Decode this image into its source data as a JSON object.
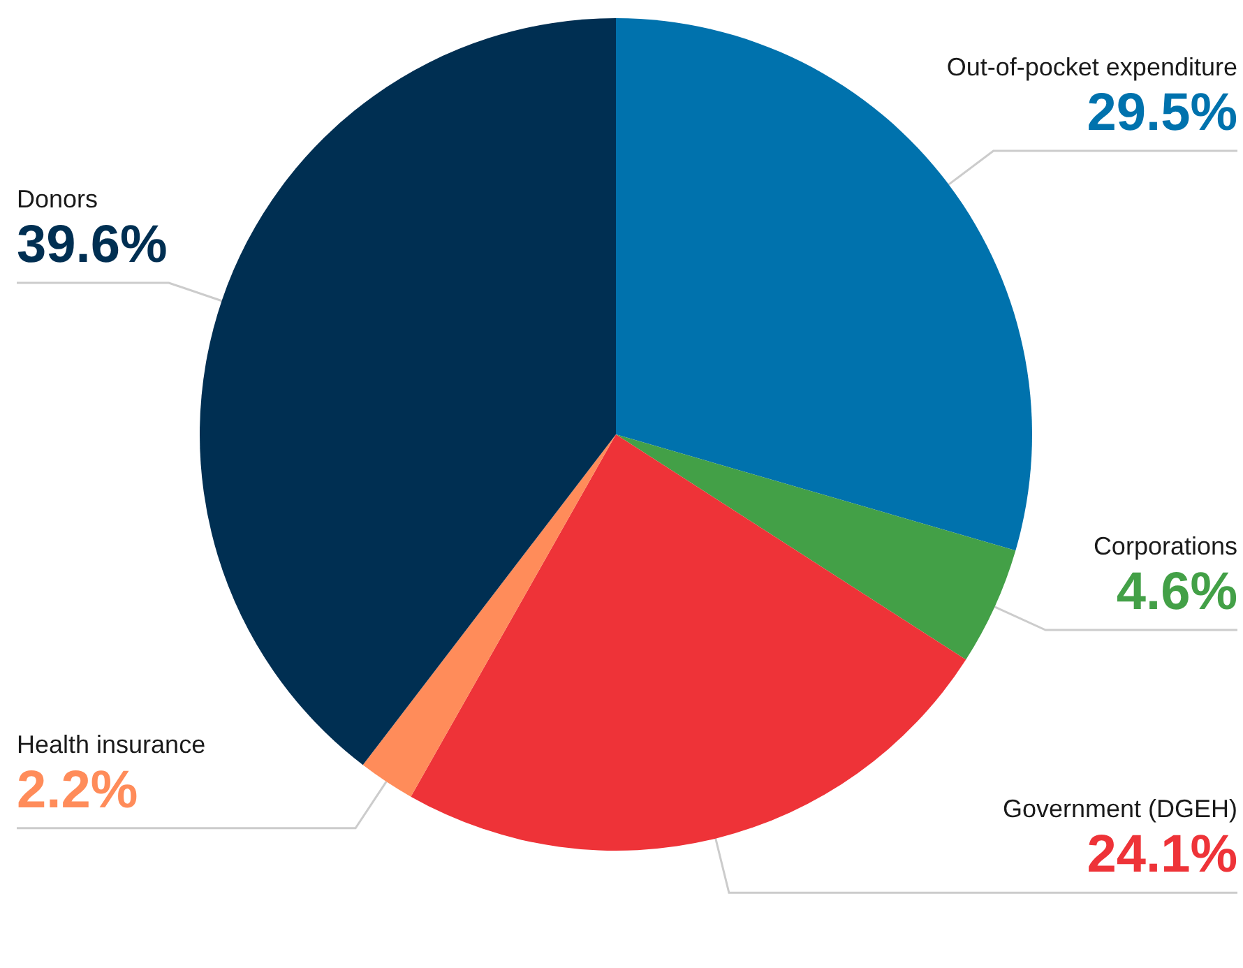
{
  "chart_data": {
    "type": "pie",
    "categories": [
      "Out-of-pocket expenditure",
      "Corporations",
      "Government (DGEH)",
      "Health insurance",
      "Donors"
    ],
    "values": [
      29.5,
      4.6,
      24.1,
      2.2,
      39.6
    ],
    "colors": [
      "#0072ad",
      "#43a047",
      "#ee3338",
      "#ff8c5a",
      "#002f52"
    ],
    "value_labels": [
      "29.5%",
      "4.6%",
      "24.1%",
      "2.2%",
      "39.6%"
    ]
  }
}
